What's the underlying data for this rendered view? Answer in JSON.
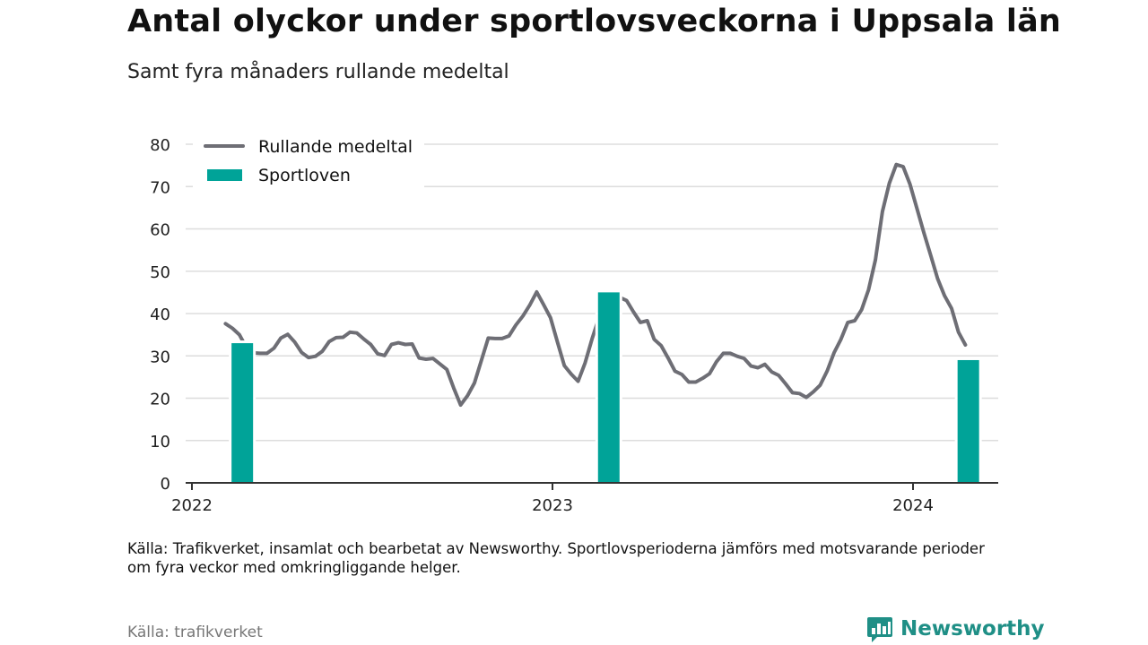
{
  "header": {
    "title": "Antal olyckor under sportlovsveckorna i Uppsala län",
    "subtitle": "Samt fyra månaders rullande medeltal"
  },
  "footer": {
    "note": "Källa: Trafikverket, insamlat och bearbetat av Newsworthy. Sportlovsperioderna jämförs med motsvarande perioder om fyra veckor med omkringliggande helger.",
    "source": "Källa: trafikverket",
    "brand": "Newsworthy"
  },
  "colors": {
    "line": "#6e6e75",
    "bar": "#00a398",
    "grid": "#dddddd",
    "axis": "#333333",
    "brand": "#1f8f86"
  },
  "chart_data": {
    "type": "bar+line",
    "ylim": [
      0,
      80
    ],
    "y_ticks": [
      0,
      10,
      20,
      30,
      40,
      50,
      60,
      70,
      80
    ],
    "xlim": [
      "2022-01-01",
      "2024-04-01"
    ],
    "x_ticks": [
      {
        "date": "2022-01-01",
        "label": "2022"
      },
      {
        "date": "2023-01-01",
        "label": "2023"
      },
      {
        "date": "2024-01-01",
        "label": "2024"
      }
    ],
    "grid": true,
    "legend": {
      "position": "top-left",
      "entries": [
        {
          "label": "Rullande medeltal",
          "kind": "line"
        },
        {
          "label": "Sportloven",
          "kind": "bar"
        }
      ]
    },
    "series": [
      {
        "name": "Sportloven",
        "kind": "bar",
        "points": [
          {
            "x": "2022-02-21",
            "y": 33
          },
          {
            "x": "2023-02-27",
            "y": 45
          },
          {
            "x": "2024-02-26",
            "y": 29
          }
        ]
      },
      {
        "name": "Rullande medeltal",
        "kind": "line",
        "points": [
          {
            "x": "2022-02-04",
            "y": 37.6
          },
          {
            "x": "2022-02-11",
            "y": 36.5
          },
          {
            "x": "2022-02-18",
            "y": 35.0
          },
          {
            "x": "2022-02-25",
            "y": 32.0
          },
          {
            "x": "2022-03-04",
            "y": 30.7
          },
          {
            "x": "2022-03-11",
            "y": 30.6
          },
          {
            "x": "2022-03-18",
            "y": 30.6
          },
          {
            "x": "2022-03-25",
            "y": 31.8
          },
          {
            "x": "2022-04-01",
            "y": 34.2
          },
          {
            "x": "2022-04-08",
            "y": 35.1
          },
          {
            "x": "2022-04-15",
            "y": 33.3
          },
          {
            "x": "2022-04-22",
            "y": 30.8
          },
          {
            "x": "2022-04-29",
            "y": 29.6
          },
          {
            "x": "2022-05-06",
            "y": 29.9
          },
          {
            "x": "2022-05-13",
            "y": 31.1
          },
          {
            "x": "2022-05-20",
            "y": 33.4
          },
          {
            "x": "2022-05-27",
            "y": 34.3
          },
          {
            "x": "2022-06-03",
            "y": 34.4
          },
          {
            "x": "2022-06-10",
            "y": 35.6
          },
          {
            "x": "2022-06-17",
            "y": 35.4
          },
          {
            "x": "2022-06-24",
            "y": 34.0
          },
          {
            "x": "2022-07-01",
            "y": 32.7
          },
          {
            "x": "2022-07-08",
            "y": 30.5
          },
          {
            "x": "2022-07-15",
            "y": 30.1
          },
          {
            "x": "2022-07-22",
            "y": 32.7
          },
          {
            "x": "2022-07-29",
            "y": 33.1
          },
          {
            "x": "2022-08-05",
            "y": 32.7
          },
          {
            "x": "2022-08-12",
            "y": 32.8
          },
          {
            "x": "2022-08-19",
            "y": 29.5
          },
          {
            "x": "2022-08-26",
            "y": 29.2
          },
          {
            "x": "2022-09-02",
            "y": 29.4
          },
          {
            "x": "2022-09-09",
            "y": 28.1
          },
          {
            "x": "2022-09-16",
            "y": 26.8
          },
          {
            "x": "2022-09-23",
            "y": 22.4
          },
          {
            "x": "2022-09-30",
            "y": 18.4
          },
          {
            "x": "2022-10-07",
            "y": 20.6
          },
          {
            "x": "2022-10-14",
            "y": 23.6
          },
          {
            "x": "2022-10-21",
            "y": 28.9
          },
          {
            "x": "2022-10-28",
            "y": 34.2
          },
          {
            "x": "2022-11-04",
            "y": 34.1
          },
          {
            "x": "2022-11-11",
            "y": 34.1
          },
          {
            "x": "2022-11-18",
            "y": 34.7
          },
          {
            "x": "2022-11-25",
            "y": 37.3
          },
          {
            "x": "2022-12-02",
            "y": 39.4
          },
          {
            "x": "2022-12-09",
            "y": 42.0
          },
          {
            "x": "2022-12-16",
            "y": 45.1
          },
          {
            "x": "2022-12-23",
            "y": 42.1
          },
          {
            "x": "2022-12-30",
            "y": 39.0
          },
          {
            "x": "2023-01-06",
            "y": 33.3
          },
          {
            "x": "2023-01-13",
            "y": 27.7
          },
          {
            "x": "2023-01-20",
            "y": 25.7
          },
          {
            "x": "2023-01-27",
            "y": 24.0
          },
          {
            "x": "2023-02-03",
            "y": 28.3
          },
          {
            "x": "2023-02-10",
            "y": 34.0
          },
          {
            "x": "2023-02-17",
            "y": 39.0
          },
          {
            "x": "2023-02-24",
            "y": 42.5
          },
          {
            "x": "2023-03-03",
            "y": 44.2
          },
          {
            "x": "2023-03-10",
            "y": 43.8
          },
          {
            "x": "2023-03-17",
            "y": 43.1
          },
          {
            "x": "2023-03-24",
            "y": 40.4
          },
          {
            "x": "2023-03-31",
            "y": 37.9
          },
          {
            "x": "2023-04-07",
            "y": 38.3
          },
          {
            "x": "2023-04-14",
            "y": 33.9
          },
          {
            "x": "2023-04-21",
            "y": 32.4
          },
          {
            "x": "2023-04-28",
            "y": 29.5
          },
          {
            "x": "2023-05-05",
            "y": 26.4
          },
          {
            "x": "2023-05-12",
            "y": 25.6
          },
          {
            "x": "2023-05-19",
            "y": 23.8
          },
          {
            "x": "2023-05-26",
            "y": 23.8
          },
          {
            "x": "2023-06-02",
            "y": 24.7
          },
          {
            "x": "2023-06-09",
            "y": 25.8
          },
          {
            "x": "2023-06-16",
            "y": 28.6
          },
          {
            "x": "2023-06-23",
            "y": 30.6
          },
          {
            "x": "2023-06-30",
            "y": 30.6
          },
          {
            "x": "2023-07-07",
            "y": 29.9
          },
          {
            "x": "2023-07-14",
            "y": 29.4
          },
          {
            "x": "2023-07-21",
            "y": 27.6
          },
          {
            "x": "2023-07-28",
            "y": 27.2
          },
          {
            "x": "2023-08-04",
            "y": 28.0
          },
          {
            "x": "2023-08-11",
            "y": 26.2
          },
          {
            "x": "2023-08-18",
            "y": 25.4
          },
          {
            "x": "2023-08-25",
            "y": 23.4
          },
          {
            "x": "2023-09-01",
            "y": 21.3
          },
          {
            "x": "2023-09-08",
            "y": 21.1
          },
          {
            "x": "2023-09-15",
            "y": 20.2
          },
          {
            "x": "2023-09-22",
            "y": 21.5
          },
          {
            "x": "2023-09-29",
            "y": 23.1
          },
          {
            "x": "2023-10-06",
            "y": 26.4
          },
          {
            "x": "2023-10-13",
            "y": 30.7
          },
          {
            "x": "2023-10-20",
            "y": 33.9
          },
          {
            "x": "2023-10-27",
            "y": 37.9
          },
          {
            "x": "2023-11-03",
            "y": 38.3
          },
          {
            "x": "2023-11-10",
            "y": 40.9
          },
          {
            "x": "2023-11-17",
            "y": 45.6
          },
          {
            "x": "2023-11-24",
            "y": 52.7
          },
          {
            "x": "2023-12-01",
            "y": 64.1
          },
          {
            "x": "2023-12-08",
            "y": 70.8
          },
          {
            "x": "2023-12-15",
            "y": 75.2
          },
          {
            "x": "2023-12-22",
            "y": 74.7
          },
          {
            "x": "2023-12-29",
            "y": 70.5
          },
          {
            "x": "2024-01-05",
            "y": 64.8
          },
          {
            "x": "2024-01-12",
            "y": 59.1
          },
          {
            "x": "2024-01-19",
            "y": 53.7
          },
          {
            "x": "2024-01-26",
            "y": 48.2
          },
          {
            "x": "2024-02-02",
            "y": 44.2
          },
          {
            "x": "2024-02-09",
            "y": 41.2
          },
          {
            "x": "2024-02-16",
            "y": 35.6
          },
          {
            "x": "2024-02-23",
            "y": 32.6
          }
        ]
      }
    ]
  }
}
